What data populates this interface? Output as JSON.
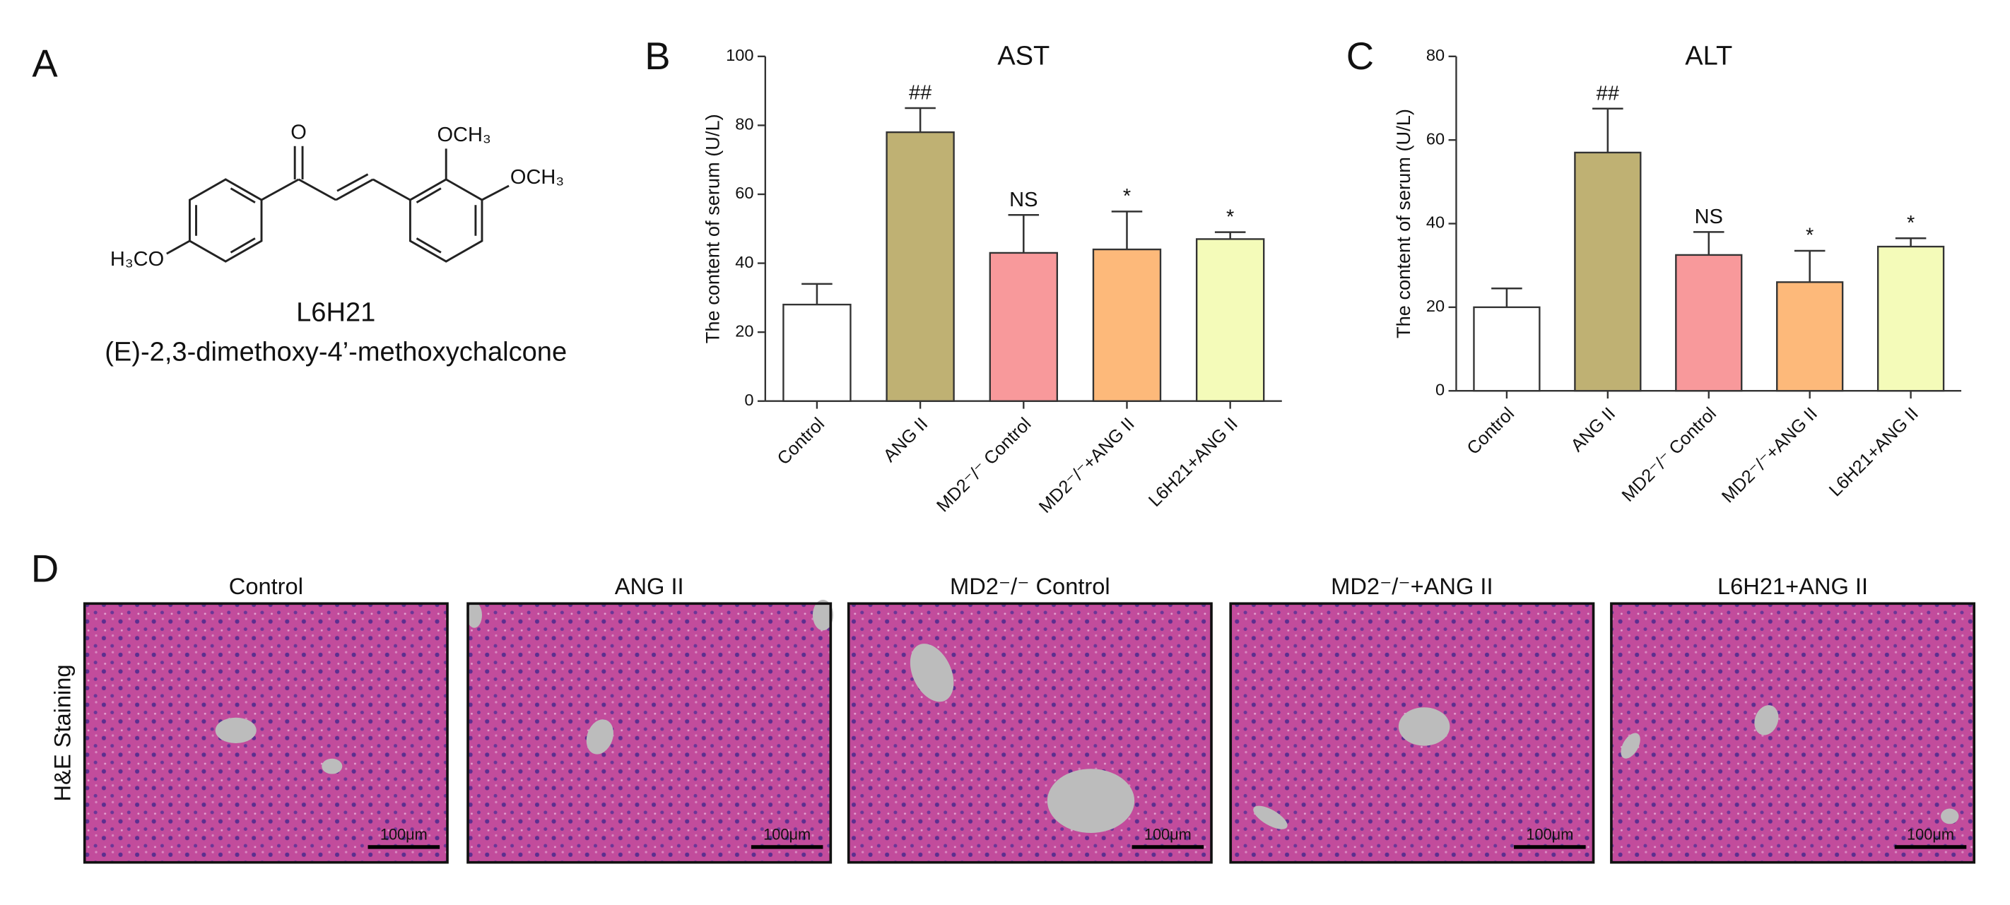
{
  "panel_labels": [
    "A",
    "B",
    "C",
    "D"
  ],
  "structure": {
    "carbonyl_o": "O",
    "ortho_group": "OCH₃",
    "meta_group": "OCH₃",
    "para_group": "H₃CO",
    "compound": "L6H21",
    "name": "(E)-2,3-dimethoxy-4’-methoxychalcone"
  },
  "chart_data": [
    {
      "type": "bar",
      "title": "AST",
      "y_label": "The content of serum (U/L)",
      "categories": [
        "Control",
        "ANG II",
        "MD2⁻/⁻ Control",
        "MD2⁻/⁻+ANG II",
        "L6H21+ANG II"
      ],
      "values": [
        28,
        78,
        43,
        44,
        47
      ],
      "errors": [
        6,
        7,
        11,
        11,
        2
      ],
      "annotations": [
        null,
        "##",
        "NS",
        "*",
        "*"
      ],
      "colors": [
        "#ffffff",
        "#bfb173",
        "#f8999b",
        "#fdb97a",
        "#f4fbb9"
      ],
      "ylim": [
        0,
        100
      ],
      "yticks": [
        0,
        20,
        40,
        60,
        80,
        100
      ]
    },
    {
      "type": "bar",
      "title": "ALT",
      "y_label": "The content of serum (U/L)",
      "categories": [
        "Control",
        "ANG II",
        "MD2⁻/⁻ Control",
        "MD2⁻/⁻+ANG II",
        "L6H21+ANG II"
      ],
      "values": [
        20,
        57,
        32.5,
        26,
        34.5
      ],
      "errors": [
        4.5,
        10.5,
        5.5,
        7.5,
        2
      ],
      "annotations": [
        null,
        "##",
        "NS",
        "*",
        "*"
      ],
      "colors": [
        "#ffffff",
        "#bfb173",
        "#f8999b",
        "#fdb97a",
        "#f4fbb9"
      ],
      "ylim": [
        0,
        80
      ],
      "yticks": [
        0,
        20,
        40,
        60,
        80
      ]
    }
  ],
  "histology": {
    "row_label": "H&E Staining",
    "panels": [
      {
        "title": "Control",
        "scale_bar": "100μm"
      },
      {
        "title": "ANG II",
        "scale_bar": "100μm"
      },
      {
        "title": "MD2⁻/⁻ Control",
        "scale_bar": "100μm"
      },
      {
        "title": "MD2⁻/⁻+ANG II",
        "scale_bar": "100μm"
      },
      {
        "title": "L6H21+ANG II",
        "scale_bar": "100μm"
      }
    ]
  }
}
